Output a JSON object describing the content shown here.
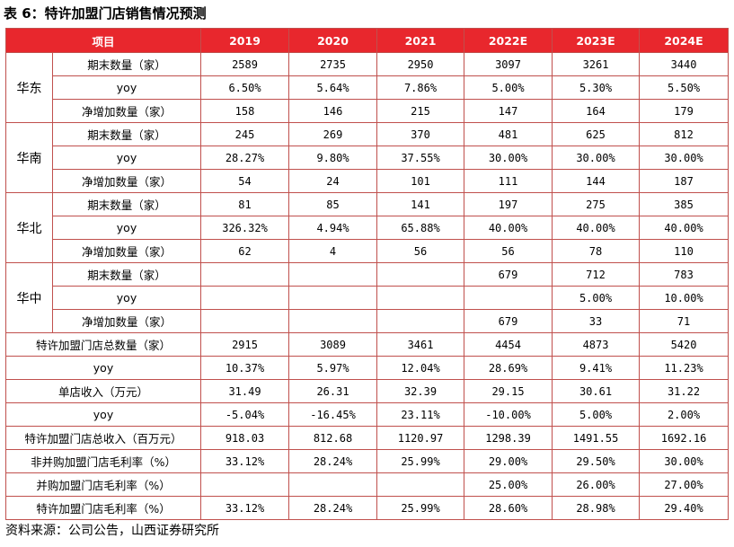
{
  "title": "表 6：特许加盟门店销售情况预测",
  "header": [
    "项目",
    "2019",
    "2020",
    "2021",
    "2022E",
    "2023E",
    "2024E"
  ],
  "regions": [
    {
      "name": "华东",
      "rows": [
        {
          "label": "期末数量（家）",
          "values": [
            "2589",
            "2735",
            "2950",
            "3097",
            "3261",
            "3440"
          ]
        },
        {
          "label": "yoy",
          "values": [
            "6.50%",
            "5.64%",
            "7.86%",
            "5.00%",
            "5.30%",
            "5.50%"
          ]
        },
        {
          "label": "净增加数量（家）",
          "values": [
            "158",
            "146",
            "215",
            "147",
            "164",
            "179"
          ]
        }
      ]
    },
    {
      "name": "华南",
      "rows": [
        {
          "label": "期末数量（家）",
          "values": [
            "245",
            "269",
            "370",
            "481",
            "625",
            "812"
          ]
        },
        {
          "label": "yoy",
          "values": [
            "28.27%",
            "9.80%",
            "37.55%",
            "30.00%",
            "30.00%",
            "30.00%"
          ]
        },
        {
          "label": "净增加数量（家）",
          "values": [
            "54",
            "24",
            "101",
            "111",
            "144",
            "187"
          ]
        }
      ]
    },
    {
      "name": "华北",
      "rows": [
        {
          "label": "期末数量（家）",
          "values": [
            "81",
            "85",
            "141",
            "197",
            "275",
            "385"
          ]
        },
        {
          "label": "yoy",
          "values": [
            "326.32%",
            "4.94%",
            "65.88%",
            "40.00%",
            "40.00%",
            "40.00%"
          ]
        },
        {
          "label": "净增加数量（家）",
          "values": [
            "62",
            "4",
            "56",
            "56",
            "78",
            "110"
          ]
        }
      ]
    },
    {
      "name": "华中",
      "rows": [
        {
          "label": "期末数量（家）",
          "values": [
            "",
            "",
            "",
            "679",
            "712",
            "783"
          ]
        },
        {
          "label": "yoy",
          "values": [
            "",
            "",
            "",
            "",
            "5.00%",
            "10.00%"
          ]
        },
        {
          "label": "净增加数量（家）",
          "values": [
            "",
            "",
            "",
            "679",
            "33",
            "71"
          ]
        }
      ]
    }
  ],
  "summary": [
    {
      "label": "特许加盟门店总数量（家）",
      "values": [
        "2915",
        "3089",
        "3461",
        "4454",
        "4873",
        "5420"
      ]
    },
    {
      "label": "yoy",
      "values": [
        "10.37%",
        "5.97%",
        "12.04%",
        "28.69%",
        "9.41%",
        "11.23%"
      ]
    },
    {
      "label": "单店收入（万元）",
      "values": [
        "31.49",
        "26.31",
        "32.39",
        "29.15",
        "30.61",
        "31.22"
      ]
    },
    {
      "label": "yoy",
      "values": [
        "-5.04%",
        "-16.45%",
        "23.11%",
        "-10.00%",
        "5.00%",
        "2.00%"
      ]
    },
    {
      "label": "特许加盟门店总收入（百万元）",
      "values": [
        "918.03",
        "812.68",
        "1120.97",
        "1298.39",
        "1491.55",
        "1692.16"
      ]
    },
    {
      "label": "非并购加盟门店毛利率（%）",
      "values": [
        "33.12%",
        "28.24%",
        "25.99%",
        "29.00%",
        "29.50%",
        "30.00%"
      ]
    },
    {
      "label": "并购加盟门店毛利率（%）",
      "values": [
        "",
        "",
        "",
        "25.00%",
        "26.00%",
        "27.00%"
      ]
    },
    {
      "label": "特许加盟门店毛利率（%）",
      "values": [
        "33.12%",
        "28.24%",
        "25.99%",
        "28.60%",
        "28.98%",
        "29.40%"
      ]
    }
  ],
  "source": "资料来源：公司公告，山西证券研究所",
  "colors": {
    "header_bg": "#e8272d",
    "border": "#c0504d",
    "header_text": "#ffffff"
  }
}
